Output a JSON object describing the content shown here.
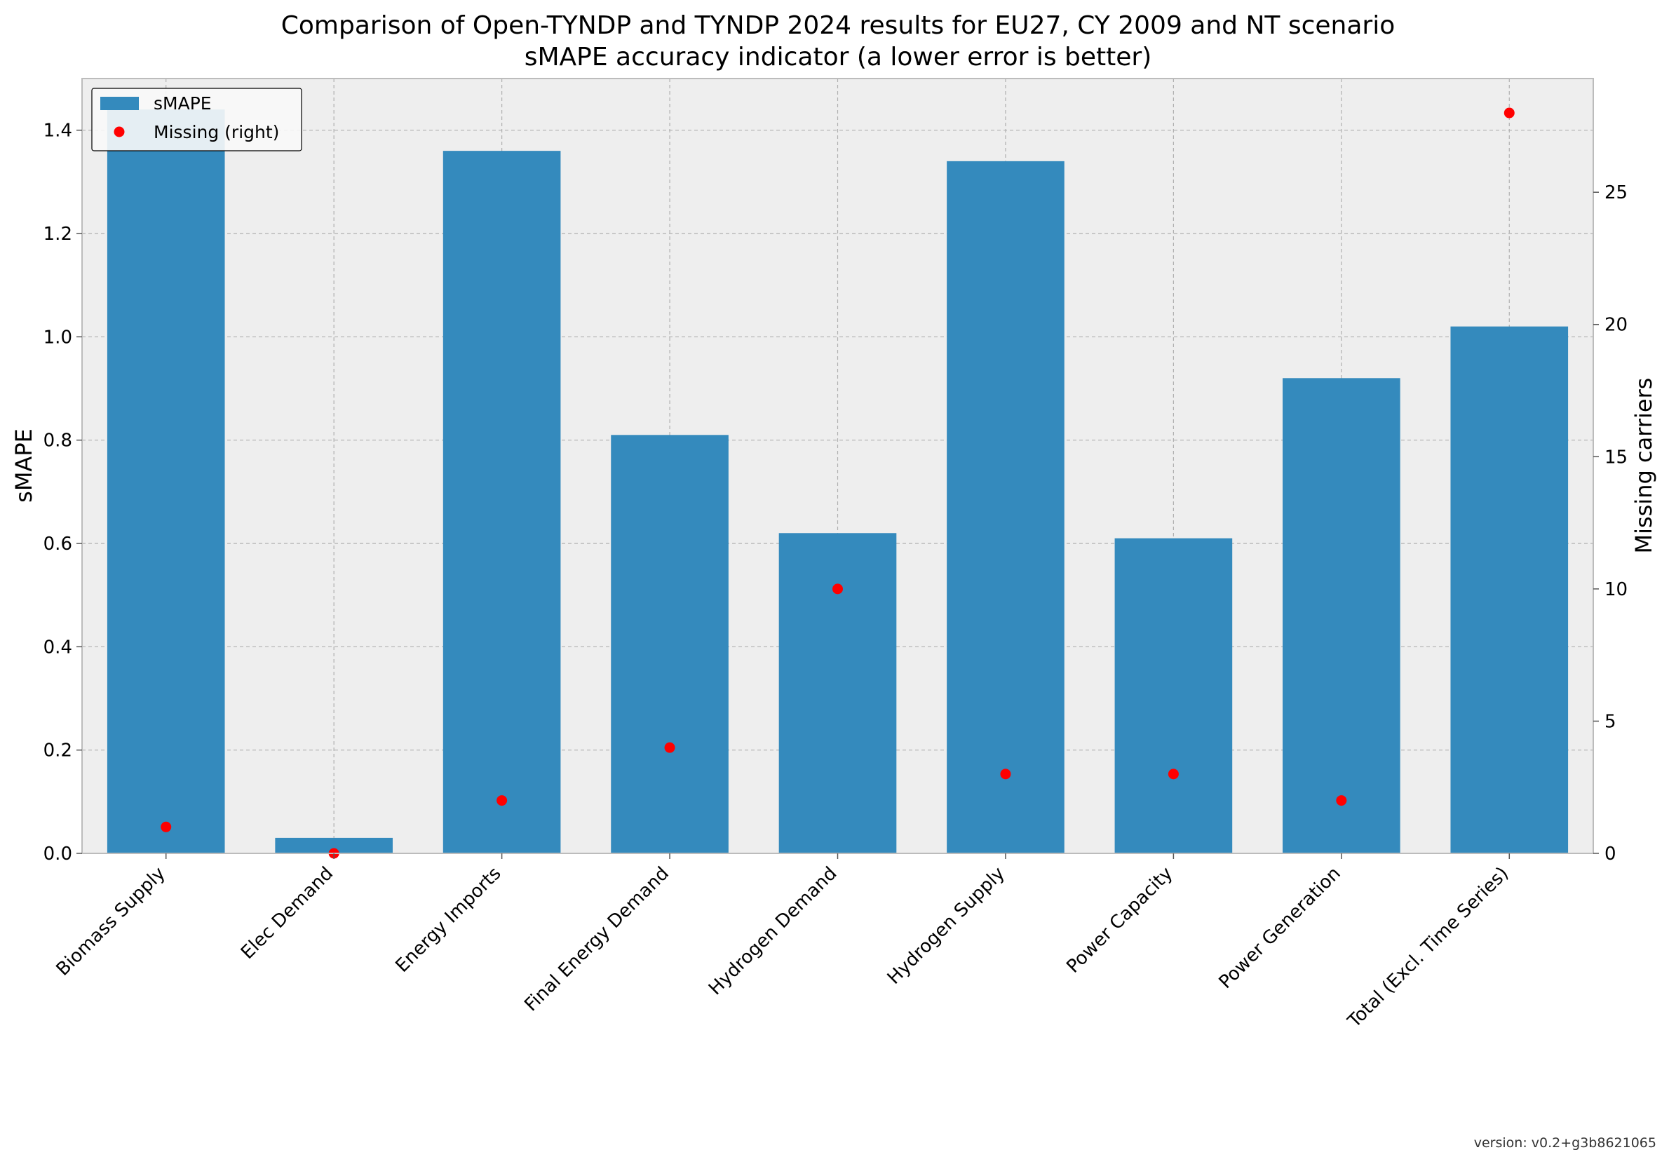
{
  "chart_data": {
    "type": "bar",
    "title": "Comparison of Open-TYNDP and TYNDP 2024 results for EU27, CY 2009 and NT scenario",
    "subtitle": "sMAPE accuracy indicator (a lower error is better)",
    "xlabel": "",
    "ylabel": "sMAPE",
    "ylabel_right": "Missing carriers",
    "ylim": [
      0,
      1.5
    ],
    "ylim_right": [
      0,
      29.3
    ],
    "yticks": [
      "0.0",
      "0.2",
      "0.4",
      "0.6",
      "0.8",
      "1.0",
      "1.2",
      "1.4"
    ],
    "yticks_right": [
      "0",
      "5",
      "10",
      "15",
      "20",
      "25"
    ],
    "categories": [
      "Biomass Supply",
      "Elec Demand",
      "Energy Imports",
      "Final Energy Demand",
      "Hydrogen Demand",
      "Hydrogen Supply",
      "Power Capacity",
      "Power Generation",
      "Total (Excl. Time Series)"
    ],
    "series": [
      {
        "name": "sMAPE",
        "axis": "left",
        "kind": "bar",
        "color": "#348abd",
        "values": [
          1.44,
          0.03,
          1.36,
          0.81,
          0.62,
          1.34,
          0.61,
          0.92,
          1.02
        ]
      },
      {
        "name": "Missing (right)",
        "axis": "right",
        "kind": "scatter",
        "color": "#ff0000",
        "values": [
          1,
          0,
          2,
          4,
          10,
          3,
          3,
          2,
          28
        ]
      }
    ],
    "legend": {
      "position": "top-left",
      "labels": [
        "sMAPE",
        "Missing (right)"
      ]
    },
    "grid": true
  },
  "footer": {
    "version": "version: v0.2+g3b8621065"
  },
  "colors": {
    "plot_bg": "#eeeeee",
    "bar": "#348abd",
    "marker": "#ff0000",
    "grid": "#b0b0b0",
    "axis": "#bcbcbc"
  }
}
